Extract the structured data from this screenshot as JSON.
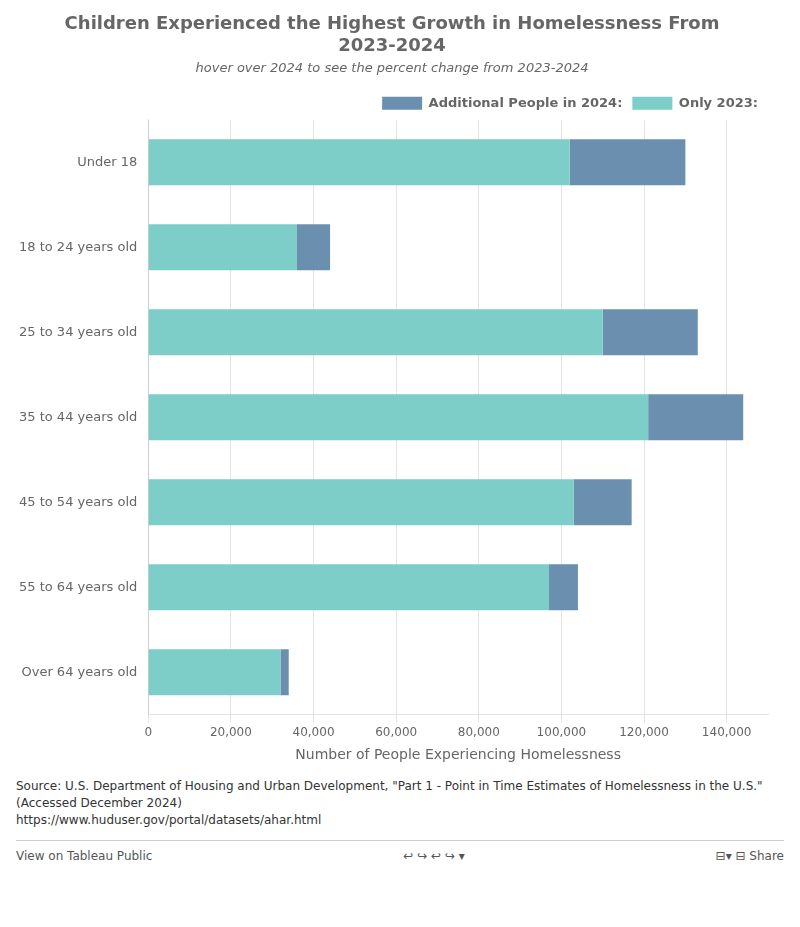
{
  "chart_data": {
    "type": "bar",
    "orientation": "horizontal",
    "stacked": true,
    "title": [
      "Children Experienced the Highest Growth in Homelessness From",
      "2023-2024"
    ],
    "subtitle": "hover over 2024 to see the percent change from 2023-2024",
    "xlabel": "Number of People Experiencing Homelessness",
    "categories": [
      "Under 18",
      "18 to 24 years old",
      "25 to 34 years old",
      "35 to 44 years old",
      "45 to 54 years old",
      "55 to 64 years old",
      "Over 64 years old"
    ],
    "series": [
      {
        "name": "Only 2023:",
        "color": "#7DCDC8",
        "values": [
          102000,
          36000,
          110000,
          121000,
          103000,
          97000,
          32000
        ]
      },
      {
        "name": "Additional People in 2024:",
        "color": "#6B8FAF",
        "values": [
          28000,
          8000,
          23000,
          23000,
          14000,
          7000,
          2000
        ]
      }
    ],
    "xlim": [
      0,
      150000
    ],
    "xticks": [
      0,
      {
        "value": 20000,
        "label": "20,000"
      },
      {
        "value": 40000,
        "label": "40,000"
      },
      {
        "value": 60000,
        "label": "60,000"
      },
      {
        "value": 80000,
        "label": "80,000"
      },
      {
        "value": 100000,
        "label": "100,000"
      },
      {
        "value": 120000,
        "label": "120,000"
      },
      {
        "value": 140000,
        "label": "140,000"
      }
    ],
    "grid": true,
    "legend": "top right",
    "source": "Source: U.S. Department of Housing and Urban Development, \"Part 1 - Point in Time Estimates of Homelessness in the U.S.\" (Accessed December 2024)",
    "source_url": "https://www.huduser.gov/portal/datasets/ahar.html",
    "footer": [
      "View on Tableau Public",
      "↩  ↪  ↩  ↪  ▾",
      "⊟▾  ⊟  Share"
    ]
  }
}
